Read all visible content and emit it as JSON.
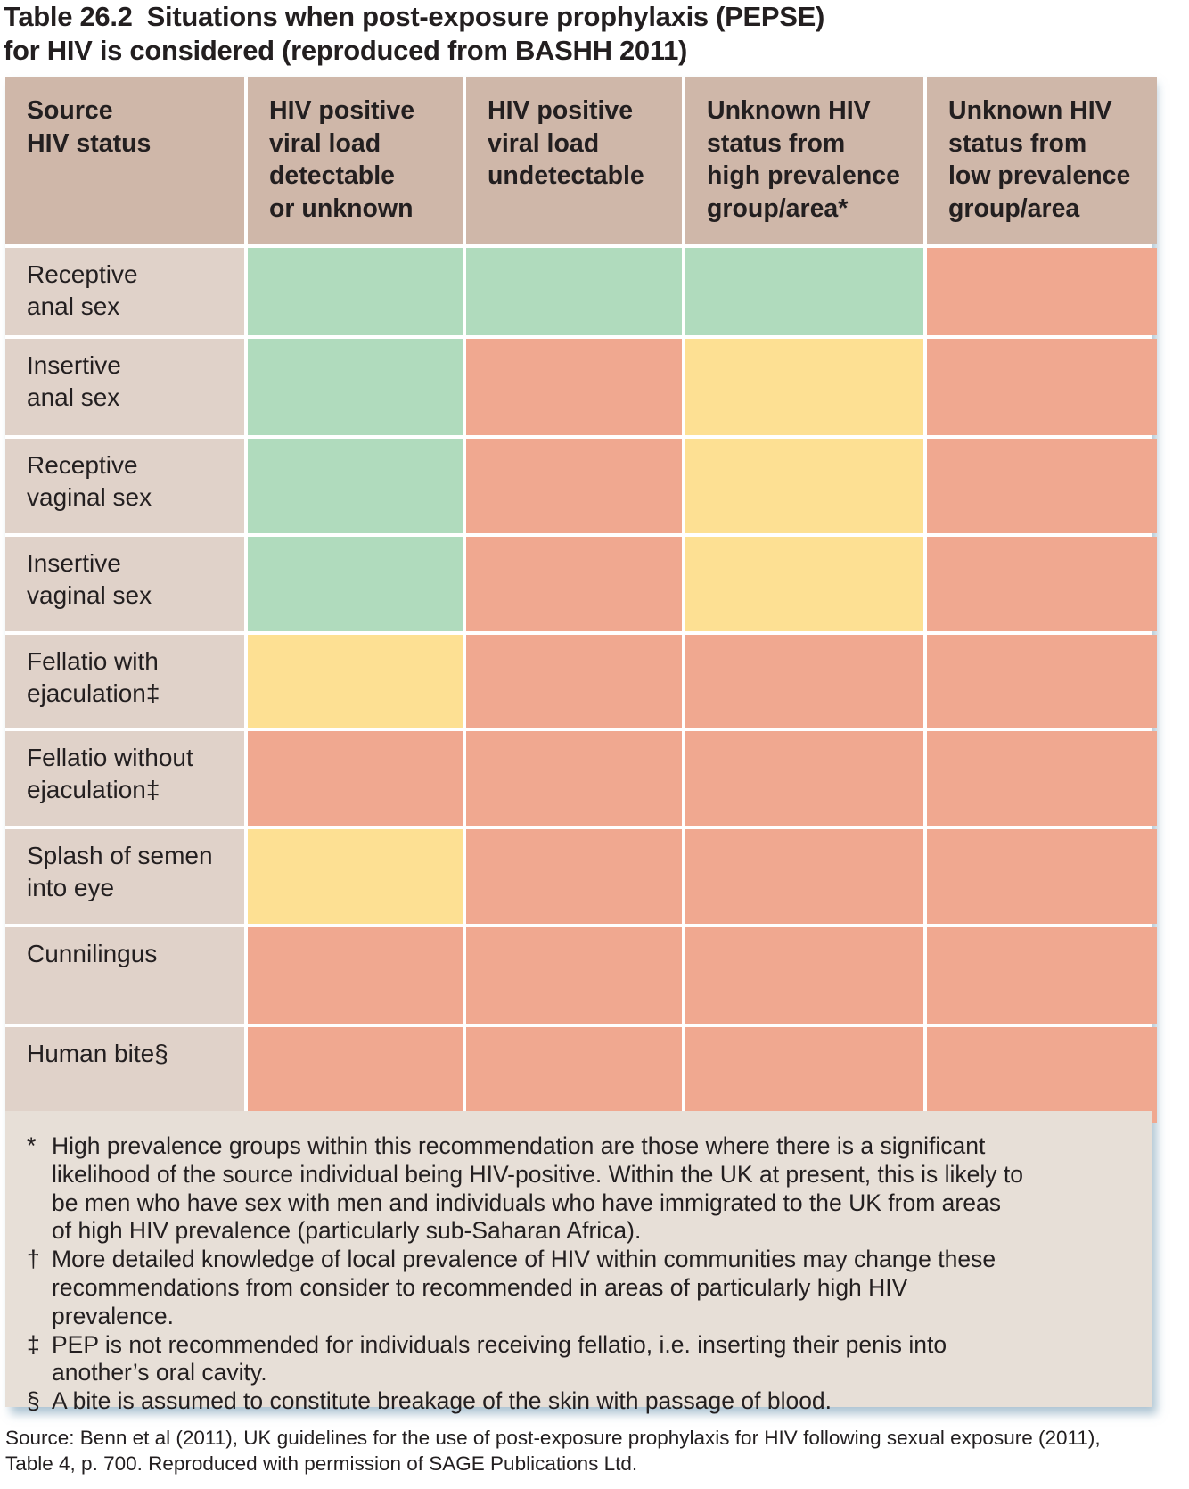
{
  "title": {
    "number": "Table 26.2",
    "line1": "Situations when post-exposure prophylaxis (PEPSE)",
    "line2": "for HIV is considered (reproduced from BASHH 2011)"
  },
  "colors": {
    "header_bg": "#cfb7a9",
    "row_label_bg": "#e0d2c9",
    "recommended_green": "#b0dbbd",
    "consider_yellow": "#fde093",
    "not_recommended_red": "#f0a890",
    "notes_bg": "#e7dfd7"
  },
  "table": {
    "columns": [
      {
        "lines": [
          "Source",
          "HIV status"
        ]
      },
      {
        "lines": [
          "HIV positive",
          "viral load",
          "detectable",
          "or unknown"
        ]
      },
      {
        "lines": [
          "HIV positive",
          "viral load",
          "undetectable"
        ]
      },
      {
        "lines": [
          "Unknown HIV",
          "status from",
          "high prevalence",
          "group/area*"
        ]
      },
      {
        "lines": [
          "Unknown HIV",
          "status from",
          "low prevalence",
          "group/area"
        ]
      }
    ],
    "rows": [
      {
        "label": [
          "Receptive",
          "anal sex"
        ],
        "cells": [
          "green",
          "green",
          "green",
          "red"
        ]
      },
      {
        "label": [
          "Insertive",
          "anal sex"
        ],
        "cells": [
          "green",
          "red",
          "yellow",
          "red"
        ]
      },
      {
        "label": [
          "Receptive",
          "vaginal sex"
        ],
        "cells": [
          "green",
          "red",
          "yellow",
          "red"
        ]
      },
      {
        "label": [
          "Insertive",
          "vaginal sex"
        ],
        "cells": [
          "green",
          "red",
          "yellow",
          "red"
        ]
      },
      {
        "label": [
          "Fellatio with",
          "ejaculation‡"
        ],
        "cells": [
          "yellow",
          "red",
          "red",
          "red"
        ]
      },
      {
        "label": [
          "Fellatio without",
          "ejaculation‡"
        ],
        "cells": [
          "red",
          "red",
          "red",
          "red"
        ]
      },
      {
        "label": [
          "Splash of semen",
          "into eye"
        ],
        "cells": [
          "yellow",
          "red",
          "red",
          "red"
        ]
      },
      {
        "label": [
          "Cunnilingus"
        ],
        "cells": [
          "red",
          "red",
          "red",
          "red"
        ]
      },
      {
        "label": [
          "Human bite§"
        ],
        "cells": [
          "red",
          "red",
          "red",
          "red"
        ]
      }
    ]
  },
  "notes": [
    {
      "mark": "*",
      "text": "High prevalence groups within this recommendation are those where there is a significant likelihood of the source individual being HIV-positive. Within the UK at present, this is likely to be men who have sex with men and individuals who have immigrated to the UK from areas of high HIV prevalence (particularly sub-Saharan Africa)."
    },
    {
      "mark": "†",
      "text": "More detailed knowledge of local prevalence of HIV within communities may change these recommendations from consider to recommended in areas of particularly high HIV prevalence."
    },
    {
      "mark": "‡",
      "text": " PEP is not recommended for individuals receiving fellatio, i.e. inserting their penis into another’s oral cavity."
    },
    {
      "mark": "§",
      "text": "A bite is assumed to constitute breakage of the skin with passage of blood."
    }
  ],
  "source": {
    "line1": "Source: Benn et al (2011), UK guidelines for the use of post-exposure prophylaxis for HIV following sexual exposure (2011),",
    "line2": "Table 4, p. 700. Reproduced with permission of SAGE Publications Ltd."
  }
}
